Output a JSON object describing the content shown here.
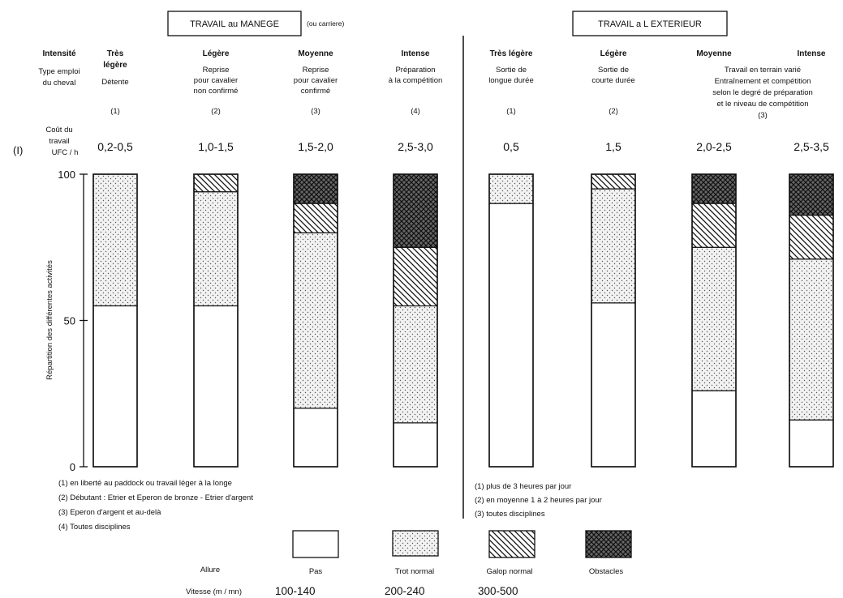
{
  "section_titles": {
    "manege": "TRAVAIL au MANEGE",
    "manege_note": "(ou carriere)",
    "exterieur": "TRAVAIL a L EXTERIEUR"
  },
  "row_labels": {
    "intensite": "Intensité",
    "type_line1": "Type emploi",
    "type_line2": "du cheval",
    "cout_line1": "Coût du",
    "cout_line2": "travail",
    "cout_line3": "UFC / h",
    "marker": "(I)"
  },
  "colors": {
    "pas": "#ffffff",
    "trot": "#f1f1f1",
    "galop": "#ffffff",
    "obstacles": "#444444",
    "ink": "#111111"
  },
  "chart_data": {
    "type": "bar",
    "stacked": true,
    "ylabel": "Répartition des différentes activités",
    "ylim": [
      0,
      100
    ],
    "yticks": [
      0,
      50,
      100
    ],
    "categories": [
      {
        "group": "manege",
        "intensity": "Très légère",
        "description": [
          "Détente"
        ],
        "note": "(1)",
        "cost": "0,2-0,5"
      },
      {
        "group": "manege",
        "intensity": "Légère",
        "description": [
          "Reprise",
          "pour cavalier",
          "non confirmé"
        ],
        "note": "(2)",
        "cost": "1,0-1,5"
      },
      {
        "group": "manege",
        "intensity": "Moyenne",
        "description": [
          "Reprise",
          "pour cavalier",
          "confirmé"
        ],
        "note": "(3)",
        "cost": "1,5-2,0"
      },
      {
        "group": "manege",
        "intensity": "Intense",
        "description": [
          "Préparation",
          "à la compétition"
        ],
        "note": "(4)",
        "cost": "2,5-3,0"
      },
      {
        "group": "exterieur",
        "intensity": "Très légère",
        "description": [
          "Sortie de",
          "longue durée"
        ],
        "note": "(1)",
        "cost": "0,5"
      },
      {
        "group": "exterieur",
        "intensity": "Légère",
        "description": [
          "Sortie de",
          "courte durée"
        ],
        "note": "(2)",
        "cost": "1,5"
      },
      {
        "group": "exterieur",
        "intensity": "Moyenne",
        "description": [],
        "note": "",
        "cost": "2,0-2,5"
      },
      {
        "group": "exterieur",
        "intensity": "Intense",
        "description": [],
        "note": "",
        "cost": "2,5-3,5"
      }
    ],
    "shared_description": {
      "lines": [
        "Travail en terrain varié",
        "Entraînement et compétition",
        "selon le degré de préparation",
        "et le niveau de compétition"
      ],
      "note": "(3)"
    },
    "series": [
      {
        "name": "Pas",
        "values": [
          55,
          55,
          20,
          15,
          90,
          56,
          26,
          16
        ]
      },
      {
        "name": "Trot normal",
        "values": [
          45,
          39,
          60,
          40,
          10,
          39,
          49,
          55
        ]
      },
      {
        "name": "Galop normal",
        "values": [
          0,
          6,
          10,
          20,
          0,
          5,
          15,
          15
        ]
      },
      {
        "name": "Obstacles",
        "values": [
          0,
          0,
          10,
          25,
          0,
          0,
          10,
          14
        ]
      }
    ]
  },
  "footnotes_left": [
    "(1)  en liberté au paddock ou travail léger à la longe",
    "(2)  Débutant : Etrier et Eperon de bronze - Etrier d'argent",
    "(3)  Eperon d'argent et au-delà",
    "(4)  Toutes disciplines"
  ],
  "footnotes_right": [
    "(1)  plus de 3 heures par jour",
    "(2)  en moyenne 1 à 2 heures par jour",
    "(3)  toutes disciplines"
  ],
  "legend": {
    "allure_label": "Allure",
    "vitesse_label": "Vitesse (m / mn)",
    "items": [
      {
        "name": "Pas",
        "speed": "100-140"
      },
      {
        "name": "Trot normal",
        "speed": "200-240"
      },
      {
        "name": "Galop normal",
        "speed": "300-500"
      },
      {
        "name": "Obstacles",
        "speed": ""
      }
    ]
  }
}
